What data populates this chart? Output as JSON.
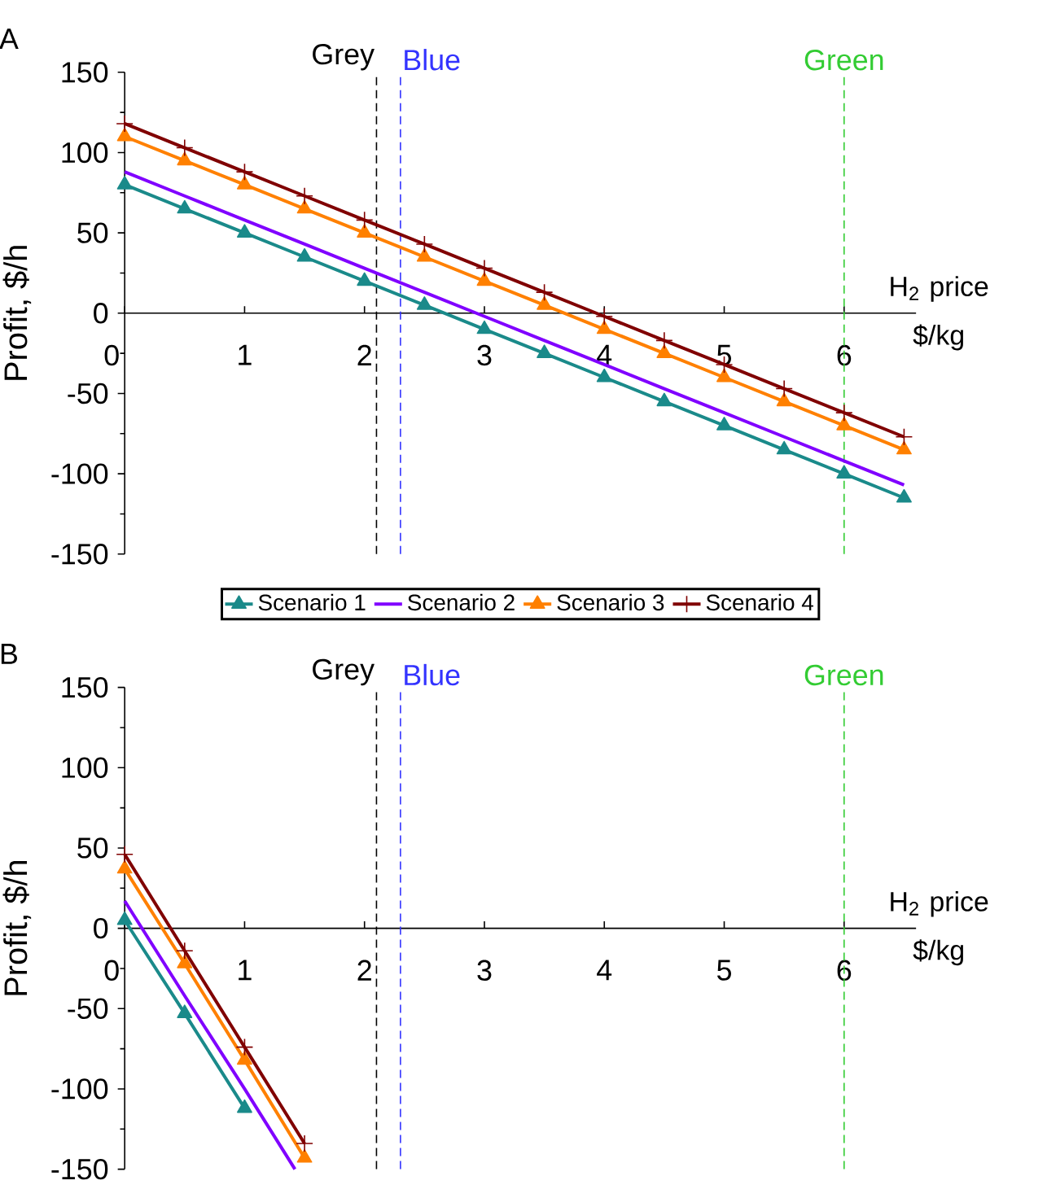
{
  "chart_data": [
    {
      "type": "line",
      "title": "A",
      "xlabel": "H$_{2}$ price $/kg",
      "ylabel": "Profit, $/h",
      "xlim": [
        0,
        6.6
      ],
      "ylim": [
        -150,
        150
      ],
      "xticks": [
        0,
        1,
        2,
        3,
        4,
        5,
        6
      ],
      "yticks": [
        -150,
        -100,
        -50,
        0,
        50,
        100,
        150
      ],
      "legend": "bottom",
      "x": [
        0,
        0.5,
        1,
        1.5,
        2,
        2.5,
        3,
        3.5,
        4,
        4.5,
        5,
        5.5,
        6,
        6.5
      ],
      "series": [
        {
          "name": "Scenario 1",
          "color": "#1a8a8a",
          "marker": "triangle",
          "values": [
            80,
            65,
            50,
            35,
            20,
            5,
            -10,
            -25,
            -40,
            -55,
            -70,
            -85,
            -100,
            -115
          ]
        },
        {
          "name": "Scenario 2",
          "color": "#8000ff",
          "marker": "none",
          "values": [
            88,
            73,
            58,
            43,
            28,
            13,
            -2,
            -17,
            -32,
            -47,
            -62,
            -77,
            -92,
            -107
          ]
        },
        {
          "name": "Scenario 3",
          "color": "#ff8000",
          "marker": "triangle",
          "values": [
            110,
            95,
            80,
            65,
            50,
            35,
            20,
            5,
            -10,
            -25,
            -40,
            -55,
            -70,
            -85
          ]
        },
        {
          "name": "Scenario 4",
          "color": "#800000",
          "marker": "cross",
          "values": [
            118,
            103,
            88,
            73,
            58,
            43,
            28,
            13,
            -2,
            -17,
            -32,
            -47,
            -62,
            -77
          ]
        }
      ],
      "ref_lines": [
        {
          "axis": "x",
          "value": 2.1,
          "label": "Grey",
          "color": "#000000",
          "line_style": "dashed"
        },
        {
          "axis": "x",
          "value": 2.3,
          "label": "Blue",
          "color": "#3333ff",
          "line_style": "dashed"
        },
        {
          "axis": "x",
          "value": 6.0,
          "label": "Green",
          "color": "#33cc33",
          "line_style": "dashed"
        }
      ]
    },
    {
      "type": "line",
      "title": "B",
      "xlabel": "H$_{2}$ price $/kg",
      "ylabel": "Profit, $/h",
      "xlim": [
        0,
        6.6
      ],
      "ylim": [
        -150,
        150
      ],
      "xticks": [
        0,
        1,
        2,
        3,
        4,
        5,
        6
      ],
      "yticks": [
        -150,
        -100,
        -50,
        0,
        50,
        100,
        150
      ],
      "series": [
        {
          "color": "#1a8a8a",
          "marker": "triangle",
          "x": [
            0,
            0.5,
            1
          ],
          "values": [
            5,
            -53,
            -112
          ]
        },
        {
          "color": "#8000ff",
          "marker": "none",
          "x": [
            0,
            0.5,
            1,
            1.42
          ],
          "values": [
            17,
            -42,
            -100,
            -150
          ]
        },
        {
          "color": "#ff8000",
          "marker": "triangle",
          "x": [
            0,
            0.5,
            1,
            1.5
          ],
          "values": [
            37,
            -22,
            -82,
            -143
          ]
        },
        {
          "color": "#800000",
          "marker": "cross",
          "x": [
            0,
            0.5,
            1,
            1.5
          ],
          "values": [
            46,
            -14,
            -74,
            -134
          ]
        }
      ],
      "ref_lines": [
        {
          "axis": "x",
          "value": 2.1,
          "label": "Grey",
          "color": "#000000",
          "line_style": "dashed"
        },
        {
          "axis": "x",
          "value": 2.3,
          "label": "Blue",
          "color": "#3333ff",
          "line_style": "dashed"
        },
        {
          "axis": "x",
          "value": 6.0,
          "label": "Green",
          "color": "#33cc33",
          "line_style": "dashed"
        }
      ]
    }
  ]
}
